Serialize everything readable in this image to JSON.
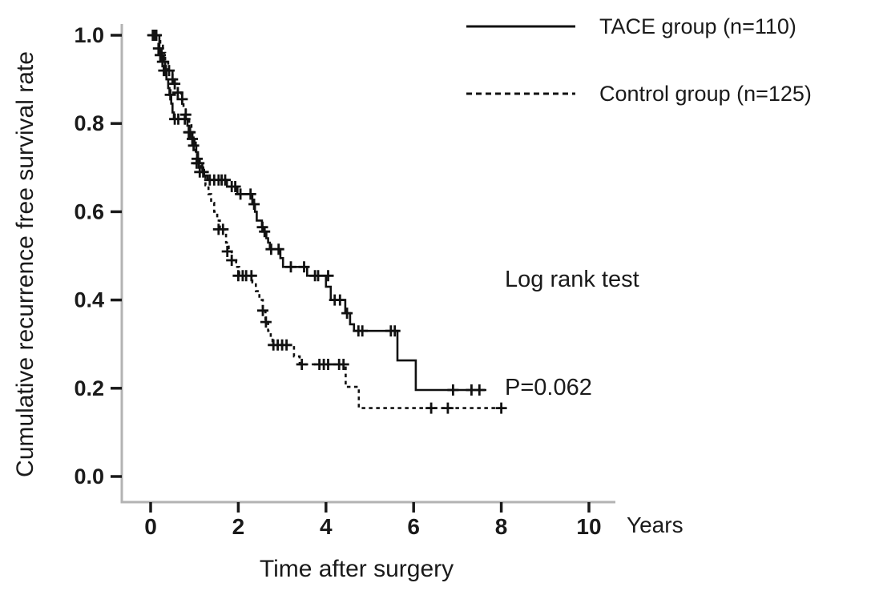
{
  "figure_title": "Recurrence-free survival Kaplan-Meier plot",
  "colors": {
    "curve": "#111111",
    "axis_spine": "#b3b3b3",
    "tick": "#1a1a1a",
    "text": "#1a1a1a",
    "background": "#ffffff"
  },
  "chart_data": {
    "type": "line",
    "subtype": "kaplan-meier-step",
    "title": "",
    "xlabel": "Time after surgery",
    "x_unit_label": "Years",
    "ylabel": "Cumulative recurrence free survival rate",
    "xlim": [
      0,
      10
    ],
    "ylim": [
      0.0,
      1.0
    ],
    "x_tick_values": [
      0,
      2,
      4,
      6,
      8,
      10
    ],
    "x_tick_labels": [
      "0",
      "2",
      "4",
      "6",
      "8",
      "10"
    ],
    "y_tick_values": [
      0.0,
      0.2,
      0.4,
      0.6,
      0.8,
      1.0
    ],
    "y_tick_labels": [
      "0.0",
      "0.2",
      "0.4",
      "0.6",
      "0.8",
      "1.0"
    ],
    "grid": false,
    "legend_position": "top-right",
    "annotation": {
      "lines": [
        "Log rank test",
        "P=0.062"
      ]
    },
    "series": [
      {
        "name": "TACE group (n=110)",
        "style": "solid",
        "end_t": 7.66,
        "steps": [
          [
            0,
            1.0
          ],
          [
            0.2,
            0.97
          ],
          [
            0.25,
            0.955
          ],
          [
            0.3,
            0.94
          ],
          [
            0.33,
            0.92
          ],
          [
            0.36,
            0.9
          ],
          [
            0.4,
            0.88
          ],
          [
            0.43,
            0.865
          ],
          [
            0.47,
            0.845
          ],
          [
            0.5,
            0.825
          ],
          [
            0.53,
            0.81
          ],
          [
            0.84,
            0.795
          ],
          [
            0.88,
            0.78
          ],
          [
            0.95,
            0.765
          ],
          [
            1.0,
            0.75
          ],
          [
            1.04,
            0.735
          ],
          [
            1.08,
            0.72
          ],
          [
            1.12,
            0.71
          ],
          [
            1.18,
            0.695
          ],
          [
            1.22,
            0.682
          ],
          [
            1.3,
            0.672
          ],
          [
            1.74,
            0.657
          ],
          [
            1.98,
            0.64
          ],
          [
            2.32,
            0.617
          ],
          [
            2.38,
            0.6
          ],
          [
            2.42,
            0.58
          ],
          [
            2.54,
            0.565
          ],
          [
            2.58,
            0.555
          ],
          [
            2.64,
            0.54
          ],
          [
            2.68,
            0.53
          ],
          [
            2.72,
            0.515
          ],
          [
            2.96,
            0.495
          ],
          [
            3.02,
            0.475
          ],
          [
            3.57,
            0.455
          ],
          [
            4.0,
            0.43
          ],
          [
            4.11,
            0.4
          ],
          [
            4.44,
            0.37
          ],
          [
            4.55,
            0.345
          ],
          [
            4.64,
            0.33
          ],
          [
            5.63,
            0.263
          ],
          [
            6.05,
            0.196
          ]
        ],
        "censors": [
          [
            0.05,
            1.0
          ],
          [
            0.1,
            1.0
          ],
          [
            0.13,
            1.0
          ],
          [
            0.18,
            0.97
          ],
          [
            0.22,
            0.955
          ],
          [
            0.27,
            0.94
          ],
          [
            0.45,
            0.865
          ],
          [
            0.55,
            0.81
          ],
          [
            0.63,
            0.81
          ],
          [
            0.78,
            0.81
          ],
          [
            0.87,
            0.78
          ],
          [
            0.95,
            0.765
          ],
          [
            0.98,
            0.75
          ],
          [
            1.06,
            0.72
          ],
          [
            1.1,
            0.71
          ],
          [
            1.35,
            0.672
          ],
          [
            1.45,
            0.672
          ],
          [
            1.55,
            0.672
          ],
          [
            1.62,
            0.672
          ],
          [
            1.7,
            0.672
          ],
          [
            1.85,
            0.657
          ],
          [
            1.93,
            0.657
          ],
          [
            2.05,
            0.64
          ],
          [
            2.28,
            0.64
          ],
          [
            2.36,
            0.617
          ],
          [
            2.55,
            0.565
          ],
          [
            2.6,
            0.555
          ],
          [
            2.75,
            0.515
          ],
          [
            2.92,
            0.515
          ],
          [
            3.2,
            0.475
          ],
          [
            3.5,
            0.475
          ],
          [
            3.75,
            0.455
          ],
          [
            3.82,
            0.455
          ],
          [
            4.05,
            0.455
          ],
          [
            4.2,
            0.4
          ],
          [
            4.32,
            0.4
          ],
          [
            4.48,
            0.37
          ],
          [
            4.74,
            0.33
          ],
          [
            4.83,
            0.33
          ],
          [
            5.48,
            0.33
          ],
          [
            5.57,
            0.33
          ],
          [
            6.9,
            0.196
          ],
          [
            7.32,
            0.196
          ],
          [
            7.5,
            0.196
          ]
        ]
      },
      {
        "name": "Control group (n=125)",
        "style": "dashed",
        "end_t": 8.1,
        "steps": [
          [
            0,
            1.0
          ],
          [
            0.22,
            0.98
          ],
          [
            0.28,
            0.96
          ],
          [
            0.33,
            0.94
          ],
          [
            0.4,
            0.92
          ],
          [
            0.5,
            0.9
          ],
          [
            0.55,
            0.89
          ],
          [
            0.62,
            0.87
          ],
          [
            0.7,
            0.855
          ],
          [
            0.75,
            0.84
          ],
          [
            0.8,
            0.82
          ],
          [
            0.88,
            0.8
          ],
          [
            0.93,
            0.78
          ],
          [
            0.98,
            0.76
          ],
          [
            1.03,
            0.73
          ],
          [
            1.08,
            0.71
          ],
          [
            1.15,
            0.69
          ],
          [
            1.25,
            0.66
          ],
          [
            1.32,
            0.64
          ],
          [
            1.38,
            0.62
          ],
          [
            1.45,
            0.6
          ],
          [
            1.52,
            0.58
          ],
          [
            1.58,
            0.56
          ],
          [
            1.72,
            0.53
          ],
          [
            1.78,
            0.51
          ],
          [
            1.85,
            0.49
          ],
          [
            1.95,
            0.475
          ],
          [
            2.02,
            0.455
          ],
          [
            2.32,
            0.44
          ],
          [
            2.4,
            0.42
          ],
          [
            2.48,
            0.4
          ],
          [
            2.56,
            0.376
          ],
          [
            2.62,
            0.35
          ],
          [
            2.68,
            0.33
          ],
          [
            2.74,
            0.31
          ],
          [
            2.78,
            0.298
          ],
          [
            3.27,
            0.272
          ],
          [
            3.4,
            0.254
          ],
          [
            4.45,
            0.203
          ],
          [
            4.75,
            0.155
          ]
        ],
        "censors": [
          [
            0.07,
            1.0
          ],
          [
            0.12,
            1.0
          ],
          [
            0.3,
            0.92
          ],
          [
            0.35,
            0.92
          ],
          [
            0.42,
            0.92
          ],
          [
            0.5,
            0.9
          ],
          [
            0.55,
            0.89
          ],
          [
            0.62,
            0.87
          ],
          [
            0.72,
            0.855
          ],
          [
            0.8,
            0.82
          ],
          [
            0.9,
            0.78
          ],
          [
            1.05,
            0.71
          ],
          [
            1.12,
            0.69
          ],
          [
            1.2,
            0.69
          ],
          [
            1.55,
            0.56
          ],
          [
            1.65,
            0.56
          ],
          [
            1.75,
            0.51
          ],
          [
            1.85,
            0.49
          ],
          [
            2.0,
            0.455
          ],
          [
            2.1,
            0.455
          ],
          [
            2.18,
            0.455
          ],
          [
            2.3,
            0.455
          ],
          [
            2.56,
            0.376
          ],
          [
            2.63,
            0.35
          ],
          [
            2.8,
            0.298
          ],
          [
            2.9,
            0.298
          ],
          [
            3.0,
            0.298
          ],
          [
            3.1,
            0.298
          ],
          [
            3.45,
            0.254
          ],
          [
            3.85,
            0.254
          ],
          [
            3.95,
            0.254
          ],
          [
            4.05,
            0.254
          ],
          [
            4.3,
            0.254
          ],
          [
            4.4,
            0.254
          ],
          [
            6.4,
            0.155
          ],
          [
            6.78,
            0.155
          ],
          [
            8.0,
            0.155
          ]
        ]
      }
    ]
  }
}
